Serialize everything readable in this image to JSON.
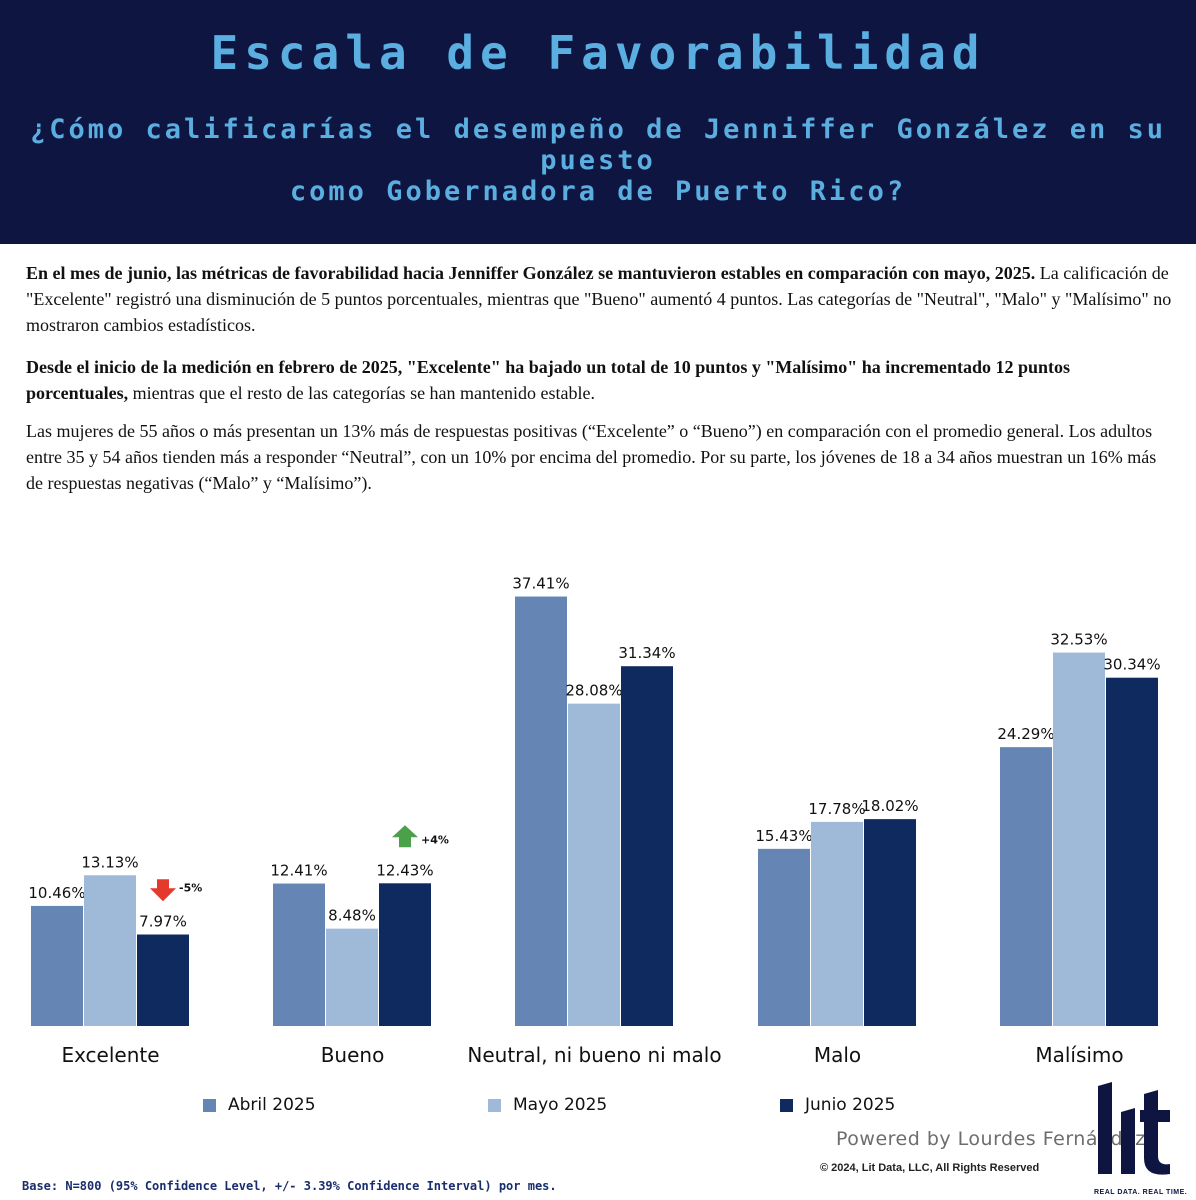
{
  "header": {
    "title": "Escala de Favorabilidad",
    "question_line1": "¿Cómo calificarías el desempeño de Jenniffer González en su puesto",
    "question_line2": "como Gobernadora de Puerto Rico?"
  },
  "paragraphs": {
    "p1_bold": "En el mes de junio, las métricas de favorabilidad hacia Jenniffer González se mantuvieron estables en comparación con mayo, 2025.",
    "p1_rest": "La calificación de \"Excelente\" registró una disminución de 5 puntos porcentuales, mientras que \"Bueno\" aumentó 4 puntos. Las categorías de \"Neutral\", \"Malo\" y \"Malísimo\" no mostraron cambios estadísticos.",
    "p2_bold": "Desde el inicio de la medición en febrero de 2025, \"Excelente\" ha bajado un total de 10 puntos y \"Malísimo\" ha incrementado 12 puntos porcentuales,",
    "p2_rest": "mientras que el resto de las categorías se han mantenido estable.",
    "p3": "Las mujeres de 55 años o más presentan un 13% más de respuestas positivas (“Excelente” o “Bueno”) en comparación con el promedio general. Los adultos entre 35 y 54 años tienden más a responder “Neutral”, con un 10% por encima del promedio. Por su parte, los jóvenes de 18 a 34 años muestran un 16% más de respuestas negativas (“Malo” y “Malísimo”)."
  },
  "chart_data": {
    "type": "bar",
    "categories": [
      "Excelente",
      "Bueno",
      "Neutral, ni bueno ni malo",
      "Malo",
      "Malísimo"
    ],
    "series": [
      {
        "name": "Abril 2025",
        "color": "#6585b4",
        "values": [
          10.46,
          12.41,
          37.41,
          15.43,
          24.29
        ],
        "labels": [
          "10.46%",
          "12.41%",
          "37.41%",
          "15.43%",
          "24.29%"
        ]
      },
      {
        "name": "Mayo 2025",
        "color": "#9fbad9",
        "values": [
          13.13,
          8.48,
          28.08,
          17.78,
          32.53
        ],
        "labels": [
          "13.13%",
          "8.48%",
          "28.08%",
          "17.78%",
          "32.53%"
        ]
      },
      {
        "name": "Junio 2025",
        "color": "#0f2a5e",
        "values": [
          7.97,
          12.43,
          31.34,
          18.02,
          30.34
        ],
        "labels": [
          "7.97%",
          "12.43%",
          "31.34%",
          "18.02%",
          "30.34%"
        ]
      }
    ],
    "annotations": [
      {
        "category": "Excelente",
        "direction": "down",
        "text": "-5%",
        "color": "#e4392b"
      },
      {
        "category": "Bueno",
        "direction": "up",
        "text": "+4%",
        "color": "#4aa14a"
      }
    ],
    "ylim": [
      0,
      40
    ],
    "grid": false,
    "legend_position": "bottom"
  },
  "footer": {
    "powered_by": "Powered by Lourdes Fernández",
    "copyright": "© 2024, Lit Data, LLC, All Rights Reserved",
    "logo_text": "lit",
    "tagline": "REAL DATA. REAL TIME.",
    "base": "Base: N=800 (95% Confidence Level, +/- 3.39% Confidence Interval) por mes."
  },
  "colors": {
    "banner": "#0e1540",
    "title": "#5aaee0",
    "abril": "#6585b4",
    "mayo": "#9fbad9",
    "junio": "#0f2a5e",
    "logo": "#0e1540"
  }
}
